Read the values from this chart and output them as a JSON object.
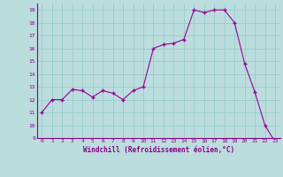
{
  "x": [
    0,
    1,
    2,
    3,
    4,
    5,
    6,
    7,
    8,
    9,
    10,
    11,
    12,
    13,
    14,
    15,
    16,
    17,
    18,
    19,
    20,
    21,
    22,
    23
  ],
  "y": [
    11,
    12,
    12,
    12.8,
    12.7,
    12.2,
    12.7,
    12.5,
    12,
    12.7,
    13,
    16,
    16.3,
    16.4,
    16.7,
    19,
    18.8,
    19,
    19,
    18,
    14.8,
    12.6,
    10,
    8.7
  ],
  "line_color": "#990099",
  "marker_color": "#990099",
  "bg_color": "#bbdddd",
  "grid_color": "#99cccc",
  "xlabel": "Windchill (Refroidissement éolien,°C)",
  "xlabel_color": "#880088",
  "tick_color": "#880088",
  "ylim": [
    9,
    19.5
  ],
  "yticks": [
    9,
    10,
    11,
    12,
    13,
    14,
    15,
    16,
    17,
    18,
    19
  ],
  "xticks": [
    0,
    1,
    2,
    3,
    4,
    5,
    6,
    7,
    8,
    9,
    10,
    11,
    12,
    13,
    14,
    15,
    16,
    17,
    18,
    19,
    20,
    21,
    22,
    23
  ],
  "figsize": [
    3.2,
    2.0
  ],
  "dpi": 100
}
